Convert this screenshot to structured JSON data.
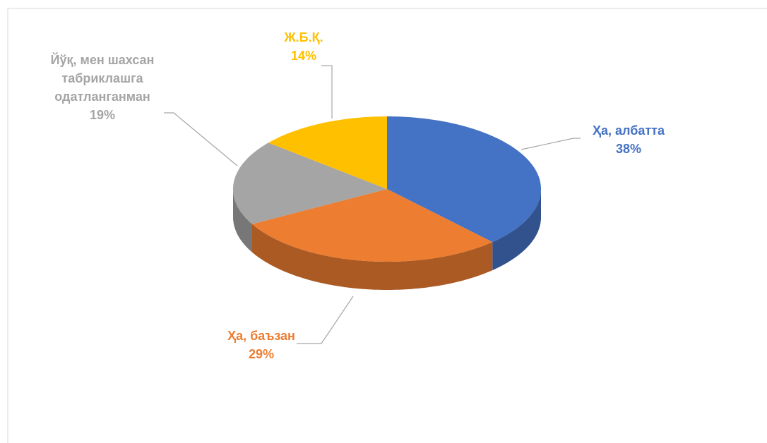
{
  "chart_data": {
    "type": "pie3d",
    "categories": [
      "Ҳа, албатта",
      "Ҳа, баъзан",
      "Йўқ, мен шахсан табриклашга одатланганман",
      "Ж.Б.Қ."
    ],
    "values": [
      38,
      29,
      19,
      14
    ],
    "value_labels": [
      "38%",
      "29%",
      "19%",
      "14%"
    ],
    "colors": [
      "#4472c4",
      "#ed7d31",
      "#a5a5a5",
      "#ffc000"
    ]
  }
}
